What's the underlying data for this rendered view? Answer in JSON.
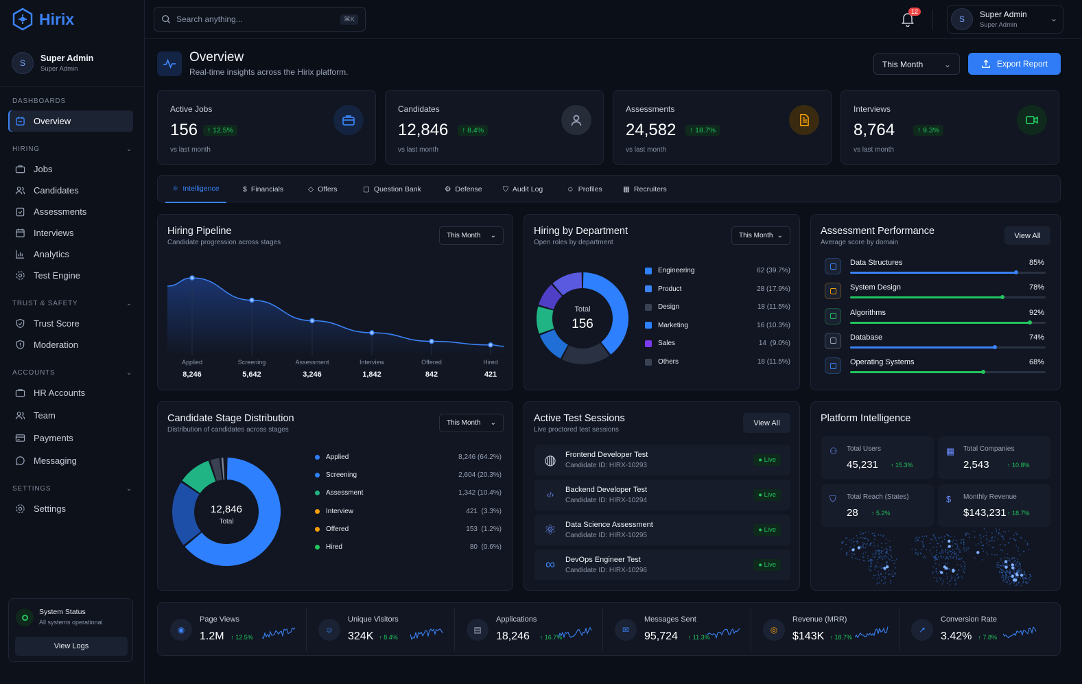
{
  "app": {
    "name": "Hirix"
  },
  "sidebar": {
    "user": {
      "initial": "S",
      "name": "Super Admin",
      "role": "Super Admin"
    },
    "sections": {
      "dashboards": "DASHBOARDS",
      "hiring": "HIRING",
      "trust": "TRUST & SAFETY",
      "accounts": "ACCOUNTS",
      "settings": "SETTINGS"
    },
    "items": {
      "overview": "Overview",
      "jobs": "Jobs",
      "candidates": "Candidates",
      "assessments": "Assessments",
      "interviews": "Interviews",
      "analytics": "Analytics",
      "test_engine": "Test Engine",
      "trust_score": "Trust Score",
      "moderation": "Moderation",
      "hr_accounts": "HR Accounts",
      "team": "Team",
      "payments": "Payments",
      "messaging": "Messaging",
      "settings": "Settings"
    },
    "system": {
      "title": "System Status",
      "status": "All systems operational",
      "button": "View Logs"
    }
  },
  "topbar": {
    "search_placeholder": "Search anything...",
    "shortcut": "⌘K",
    "notifications": "12",
    "user": {
      "initial": "S",
      "name": "Super Admin",
      "role": "Super Admin"
    }
  },
  "header": {
    "title": "Overview",
    "subtitle": "Real-time insights across the Hirix platform.",
    "period": "This Month",
    "export": "Export Report"
  },
  "kpis": [
    {
      "label": "Active Jobs",
      "value": "156",
      "change": "12.5%",
      "note": "vs last month",
      "color": "#3b82f6"
    },
    {
      "label": "Candidates",
      "value": "12,846",
      "change": "8.4%",
      "note": "vs last month",
      "color": "#9aa4b8"
    },
    {
      "label": "Assessments",
      "value": "24,582",
      "change": "18.7%",
      "note": "vs last month",
      "color": "#f59e0b"
    },
    {
      "label": "Interviews",
      "value": "8,764",
      "change": "9.3%",
      "note": "vs last month",
      "color": "#22c55e"
    }
  ],
  "tabs": [
    "Intelligence",
    "Financials",
    "Offers",
    "Question Bank",
    "Defense",
    "Audit Log",
    "Profiles",
    "Recruiters"
  ],
  "pipeline": {
    "title": "Hiring Pipeline",
    "subtitle": "Candidate progression across stages",
    "period": "This Month",
    "chart_data": {
      "type": "area",
      "categories": [
        "Applied",
        "Screening",
        "Assessment",
        "Interview",
        "Offered",
        "Hired"
      ],
      "values": [
        8246,
        5642,
        3246,
        1842,
        842,
        421
      ],
      "labels": [
        "8,246",
        "5,642",
        "3,246",
        "1,842",
        "842",
        "421"
      ]
    }
  },
  "department": {
    "title": "Hiring by Department",
    "subtitle": "Open roles by department",
    "period": "This Month",
    "center_label": "Total",
    "center_value": "156",
    "chart_data": {
      "type": "pie",
      "categories": [
        "Engineering",
        "Product",
        "Design",
        "Marketing",
        "Sales",
        "Others"
      ],
      "values": [
        62,
        28,
        18,
        16,
        14,
        18
      ],
      "labels": [
        "62 (39.7%)",
        "28 (17.9%)",
        "18 (11.5%)",
        "16 (10.3%)",
        "14  (9.0%)",
        "18 (11.5%)"
      ],
      "colors": [
        "#2f80ff",
        "#2a3142",
        "#1f6fd6",
        "#20b383",
        "#4f3fc7",
        "#5a5ae0"
      ]
    }
  },
  "assessment_perf": {
    "title": "Assessment Performance",
    "subtitle": "Average score by domain",
    "button": "View All",
    "items": [
      {
        "name": "Data Structures",
        "value": 85,
        "label": "85%",
        "color": "#3b82f6",
        "icon": "#3b82f6"
      },
      {
        "name": "System Design",
        "value": 78,
        "label": "78%",
        "color": "#22c55e",
        "icon": "#f59e0b"
      },
      {
        "name": "Algorithms",
        "value": 92,
        "label": "92%",
        "color": "#22c55e",
        "icon": "#22c55e"
      },
      {
        "name": "Database",
        "value": 74,
        "label": "74%",
        "color": "#3b82f6",
        "icon": "#9aa4b8"
      },
      {
        "name": "Operating Systems",
        "value": 68,
        "label": "68%",
        "color": "#22c55e",
        "icon": "#3b82f6"
      }
    ]
  },
  "stage_dist": {
    "title": "Candidate Stage Distribution",
    "subtitle": "Distribution of candidates across stages",
    "period": "This Month",
    "center_value": "12,846",
    "center_label": "Total",
    "chart_data": {
      "type": "pie",
      "categories": [
        "Applied",
        "Screening",
        "Assessment",
        "Interview",
        "Offered",
        "Hired"
      ],
      "values": [
        8246,
        2604,
        1342,
        421,
        153,
        80
      ],
      "labels": [
        "8,246 (64.2%)",
        "2,604 (20.3%)",
        "1,342 (10.4%)",
        "421  (3.3%)",
        "153  (1.2%)",
        "80  (0.6%)"
      ],
      "colors": [
        "#2f80ff",
        "#1e4fa8",
        "#20b383",
        "#3a4152",
        "#7a8294",
        "#5a6070"
      ],
      "legend_colors": [
        "#2f80ff",
        "#2f80ff",
        "#20b383",
        "#f59e0b",
        "#f59e0b",
        "#22c55e"
      ]
    }
  },
  "sessions": {
    "title": "Active Test Sessions",
    "subtitle": "Live proctored test sessions",
    "button": "View All",
    "items": [
      {
        "name": "Frontend Developer Test",
        "id": "Candidate ID: HIRX-10293",
        "status": "Live"
      },
      {
        "name": "Backend Developer Test",
        "id": "Candidate ID: HIRX-10294",
        "status": "Live"
      },
      {
        "name": "Data Science Assessment",
        "id": "Candidate ID: HIRX-10295",
        "status": "Live"
      },
      {
        "name": "DevOps Engineer Test",
        "id": "Candidate ID: HIRX-10296",
        "status": "Live"
      }
    ]
  },
  "platform": {
    "title": "Platform Intelligence",
    "items": [
      {
        "label": "Total Users",
        "value": "45,231",
        "change": "15.3%"
      },
      {
        "label": "Total Companies",
        "value": "2,543",
        "change": "10.8%"
      },
      {
        "label": "Total Reach (States)",
        "value": "28",
        "change": "5.2%"
      },
      {
        "label": "Monthly Revenue",
        "value": "$143,231",
        "change": "18.7%"
      }
    ]
  },
  "stats": [
    {
      "label": "Page Views",
      "value": "1.2M",
      "change": "12.5%",
      "color": "#3b82f6"
    },
    {
      "label": "Unique Visitors",
      "value": "324K",
      "change": "8.4%",
      "color": "#3b82f6"
    },
    {
      "label": "Applications",
      "value": "18,246",
      "change": "16.7%",
      "color": "#9aa4b8"
    },
    {
      "label": "Messages Sent",
      "value": "95,724",
      "change": "11.3%",
      "color": "#3b82f6"
    },
    {
      "label": "Revenue (MRR)",
      "value": "$143K",
      "change": "18.7%",
      "color": "#f59e0b"
    },
    {
      "label": "Conversion Rate",
      "value": "3.42%",
      "change": "7.8%",
      "color": "#3b82f6"
    }
  ]
}
